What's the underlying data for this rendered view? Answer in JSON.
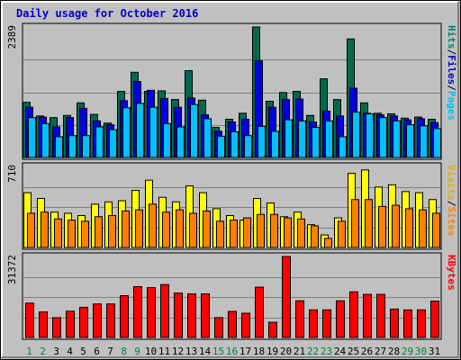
{
  "chart_data": {
    "type": "bar",
    "title": "Daily usage for October 2016",
    "title_color": "#0000cc",
    "days": [
      "1",
      "2",
      "3",
      "4",
      "5",
      "6",
      "7",
      "8",
      "9",
      "10",
      "11",
      "12",
      "13",
      "14",
      "15",
      "16",
      "17",
      "18",
      "19",
      "20",
      "21",
      "22",
      "23",
      "24",
      "25",
      "26",
      "27",
      "28",
      "29",
      "30",
      "31"
    ],
    "weekend_days": [
      "1",
      "2",
      "8",
      "9",
      "15",
      "16",
      "22",
      "23",
      "29",
      "30"
    ],
    "weekday_color": "#000000",
    "weekend_color": "#008040",
    "panels": [
      {
        "ymax_label": "2389",
        "ylim": [
          0,
          2389
        ],
        "legend": [
          {
            "text": "Hits",
            "color": "#008080"
          },
          {
            "text": "/",
            "color": "#000000"
          },
          {
            "text": "Files",
            "color": "#0000cc"
          },
          {
            "text": "/",
            "color": "#000000"
          },
          {
            "text": "Pages",
            "color": "#00bfff"
          }
        ],
        "series": [
          {
            "name": "Hits",
            "color": "#006a4e",
            "values": [
              1010,
              760,
              730,
              770,
              1000,
              790,
              630,
              1210,
              1560,
              1210,
              1220,
              1060,
              1590,
              1050,
              550,
              700,
              810,
              2389,
              1030,
              1190,
              1210,
              770,
              1440,
              1060,
              2170,
              1000,
              810,
              800,
              720,
              740,
              700
            ]
          },
          {
            "name": "Files",
            "color": "#0000e0",
            "values": [
              920,
              740,
              560,
              730,
              900,
              670,
              600,
              1040,
              1390,
              1230,
              1080,
              920,
              1090,
              780,
              480,
              650,
              700,
              1770,
              920,
              1060,
              1070,
              650,
              850,
              760,
              1270,
              810,
              780,
              760,
              690,
              710,
              640
            ]
          },
          {
            "name": "Pages",
            "color": "#00c0ff",
            "values": [
              730,
              620,
              380,
              400,
              400,
              560,
              510,
              910,
              990,
              920,
              620,
              560,
              970,
              710,
              390,
              470,
              400,
              570,
              480,
              690,
              670,
              550,
              670,
              380,
              830,
              800,
              730,
              670,
              600,
              580,
              530
            ]
          }
        ]
      },
      {
        "ymax_label": "710",
        "ylim": [
          0,
          710
        ],
        "legend": [
          {
            "text": "Visits",
            "color": "#e0b000"
          },
          {
            "text": "/",
            "color": "#000000"
          },
          {
            "text": "Sites",
            "color": "#ff8000"
          }
        ],
        "series": [
          {
            "name": "Visits",
            "color": "#ffff00",
            "values": [
              480,
              430,
              310,
              300,
              280,
              380,
              400,
              410,
              500,
              590,
              440,
              400,
              540,
              480,
              340,
              280,
              240,
              430,
              390,
              270,
              310,
              200,
              110,
              260,
              650,
              680,
              530,
              550,
              490,
              480,
              420
            ]
          },
          {
            "name": "Sites",
            "color": "#ff8000",
            "values": [
              300,
              310,
              250,
              240,
              230,
              270,
              280,
              320,
              330,
              380,
              310,
              330,
              300,
              320,
              230,
              240,
              260,
              290,
              290,
              260,
              250,
              190,
              80,
              230,
              420,
              420,
              360,
              370,
              340,
              330,
              300
            ]
          }
        ]
      },
      {
        "ymax_label": "31372",
        "ylim": [
          0,
          31372
        ],
        "legend": [
          {
            "text": "KBytes",
            "color": "#ff0000"
          }
        ],
        "series": [
          {
            "name": "KBytes",
            "color": "#ff0000",
            "values": [
              13300,
              9900,
              7700,
              10200,
              11700,
              13000,
              13000,
              16200,
              19700,
              19300,
              20500,
              17200,
              16900,
              16900,
              7700,
              10100,
              9400,
              19500,
              5900,
              31372,
              14200,
              10700,
              10700,
              14200,
              17700,
              16700,
              16700,
              11000,
              10700,
              10700,
              14100
            ]
          }
        ]
      }
    ]
  }
}
